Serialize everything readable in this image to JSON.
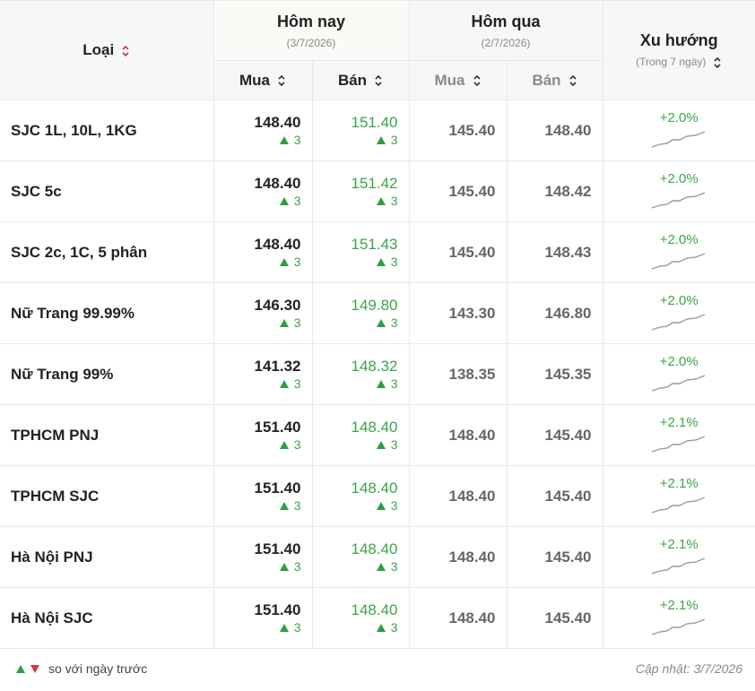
{
  "header": {
    "type": "Loại",
    "today": "Hôm nay",
    "today_date": "(3/7/2026)",
    "today_buy": "Mua",
    "today_sell": "Bán",
    "yesterday": "Hôm qua",
    "yesterday_date": "(2/7/2026)",
    "yesterday_buy": "Mua",
    "yesterday_sell": "Bán",
    "trend": "Xu hướng",
    "trend_note": "(Trong 7 ngày)"
  },
  "rows": [
    {
      "name": "SJC 1L, 10L, 1KG",
      "buy": "148.40",
      "buy_change": "3",
      "sell": "151.40",
      "sell_change": "3",
      "prev_buy": "145.40",
      "prev_sell": "148.40",
      "trend": "+2.0%"
    },
    {
      "name": "SJC 5c",
      "buy": "148.40",
      "buy_change": "3",
      "sell": "151.42",
      "sell_change": "3",
      "prev_buy": "145.40",
      "prev_sell": "148.42",
      "trend": "+2.0%"
    },
    {
      "name": "SJC 2c, 1C, 5 phân",
      "buy": "148.40",
      "buy_change": "3",
      "sell": "151.43",
      "sell_change": "3",
      "prev_buy": "145.40",
      "prev_sell": "148.43",
      "trend": "+2.0%"
    },
    {
      "name": "Nữ Trang 99.99%",
      "buy": "146.30",
      "buy_change": "3",
      "sell": "149.80",
      "sell_change": "3",
      "prev_buy": "143.30",
      "prev_sell": "146.80",
      "trend": "+2.0%"
    },
    {
      "name": "Nữ Trang 99%",
      "buy": "141.32",
      "buy_change": "3",
      "sell": "148.32",
      "sell_change": "3",
      "prev_buy": "138.35",
      "prev_sell": "145.35",
      "trend": "+2.0%"
    },
    {
      "name": "TPHCM PNJ",
      "buy": "151.40",
      "buy_change": "3",
      "sell": "148.40",
      "sell_change": "3",
      "prev_buy": "148.40",
      "prev_sell": "145.40",
      "trend": "+2.1%"
    },
    {
      "name": "TPHCM SJC",
      "buy": "151.40",
      "buy_change": "3",
      "sell": "148.40",
      "sell_change": "3",
      "prev_buy": "148.40",
      "prev_sell": "145.40",
      "trend": "+2.1%"
    },
    {
      "name": "Hà Nội PNJ",
      "buy": "151.40",
      "buy_change": "3",
      "sell": "148.40",
      "sell_change": "3",
      "prev_buy": "148.40",
      "prev_sell": "145.40",
      "trend": "+2.1%"
    },
    {
      "name": "Hà Nội SJC",
      "buy": "151.40",
      "buy_change": "3",
      "sell": "148.40",
      "sell_change": "3",
      "prev_buy": "148.40",
      "prev_sell": "145.40",
      "trend": "+2.1%"
    }
  ],
  "footer": {
    "legend": "so với ngày trước",
    "updated": "Cập nhật: 3/7/2026"
  }
}
